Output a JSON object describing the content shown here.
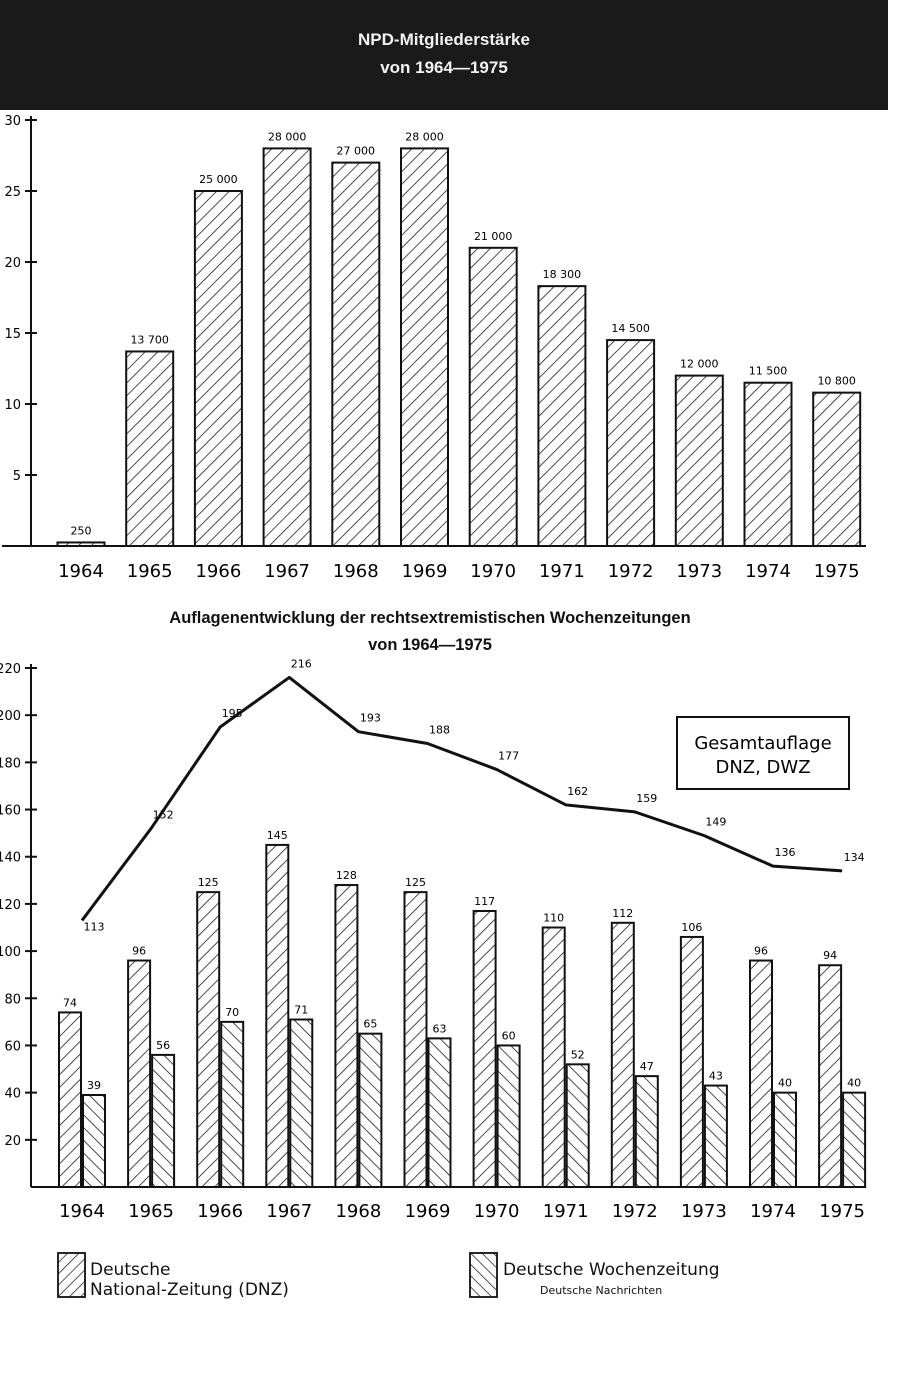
{
  "chart_data": [
    {
      "type": "bar",
      "title": "NPD-Mitgliederstärke",
      "subtitle": "von 1964—1975",
      "categories": [
        "1964",
        "1965",
        "1966",
        "1967",
        "1968",
        "1969",
        "1970",
        "1971",
        "1972",
        "1973",
        "1974",
        "1975"
      ],
      "series": [
        {
          "values": [
            250,
            13700,
            25000,
            28000,
            27000,
            28000,
            21000,
            18300,
            14500,
            12000,
            11500,
            10800
          ]
        }
      ],
      "data_labels": [
        "250",
        "13 700",
        "25 000",
        "28 000",
        "27 000",
        "28 000",
        "21 000",
        "18 300",
        "14 500",
        "12 000",
        "11 500",
        "10 800"
      ],
      "yticks": [
        "5",
        "10",
        "15",
        "20",
        "25",
        "30"
      ],
      "ytick_values": [
        5000,
        10000,
        15000,
        20000,
        25000,
        30000
      ],
      "ylim": [
        0,
        30000
      ],
      "xlabel": "",
      "ylabel": "",
      "grid": false,
      "bar_fill": "hatched"
    },
    {
      "type": "bar",
      "title": "Auflagenentwicklung der rechtsextremistischen Wochenzeitungen",
      "subtitle": "von 1964—1975",
      "categories": [
        "1964",
        "1965",
        "1966",
        "1967",
        "1968",
        "1969",
        "1970",
        "1971",
        "1972",
        "1973",
        "1974",
        "1975"
      ],
      "series": [
        {
          "name": "Deutsche National-Zeitung (DNZ)",
          "kind": "bar",
          "hatch": "forward",
          "values": [
            74,
            96,
            125,
            145,
            128,
            125,
            117,
            110,
            112,
            106,
            96,
            94
          ]
        },
        {
          "name": "Deutsche Wochenzeitung Deutsche Nachrichten",
          "kind": "bar",
          "hatch": "backward",
          "values": [
            39,
            56,
            70,
            71,
            65,
            63,
            60,
            52,
            47,
            43,
            40,
            40
          ]
        },
        {
          "name": "Gesamtauflage DNZ, DWZ",
          "kind": "line",
          "values": [
            113,
            152,
            195,
            216,
            193,
            188,
            177,
            162,
            159,
            149,
            136,
            134
          ]
        }
      ],
      "yticks": [
        "20",
        "40",
        "60",
        "80",
        "100",
        "120",
        "140",
        "160",
        "180",
        "200",
        "220"
      ],
      "ytick_values": [
        20,
        40,
        60,
        80,
        100,
        120,
        140,
        160,
        180,
        200,
        220
      ],
      "ylim": [
        0,
        220
      ],
      "grid": false,
      "legend": {
        "placement": "bottom",
        "dnz_line1": "Deutsche",
        "dnz_line2": "National-Zeitung (DNZ)",
        "dwz_line1": "Deutsche Wochenzeitung",
        "dwz_line2": "Deutsche Nachrichten"
      },
      "annotation": {
        "placement": "top-right",
        "line1": "Gesamtauflage",
        "line2": "DNZ, DWZ"
      }
    }
  ]
}
